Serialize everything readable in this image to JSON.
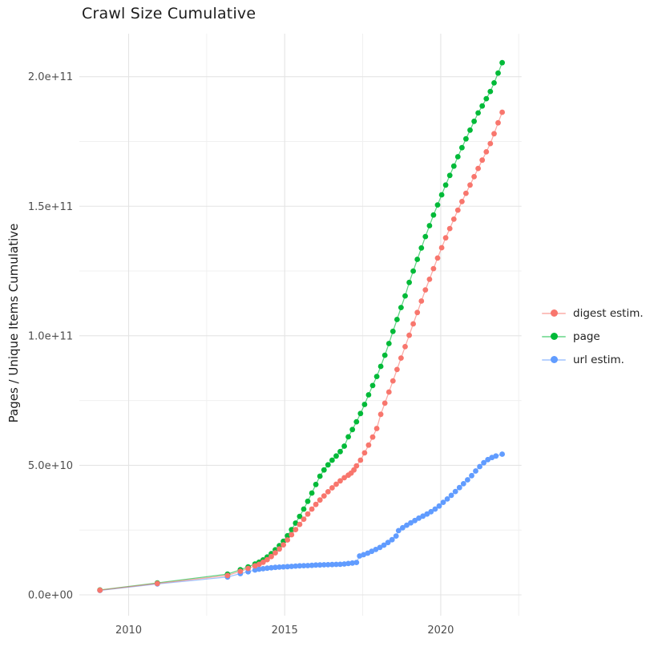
{
  "chart_data": {
    "type": "scatter",
    "title": "Crawl Size Cumulative",
    "ylabel": "Pages / Unique Items Cumulative",
    "xlabel": "",
    "background_color": "#FFFFFF",
    "grid_major_color": "#E4E4E4",
    "grid_minor_color": "#F0F0F0",
    "tick_label_color": "#4d4d4d",
    "legend_position": "right",
    "x_ticks": [
      {
        "v": 2010,
        "label": "2010"
      },
      {
        "v": 2015,
        "label": "2015"
      },
      {
        "v": 2020,
        "label": "2020"
      }
    ],
    "x_minor": [
      2012.5,
      2017.5,
      2022.5
    ],
    "y_ticks": [
      {
        "v": 0,
        "label": "0.0e+00"
      },
      {
        "v": 50,
        "label": "5.0e+10"
      },
      {
        "v": 100,
        "label": "1.0e+11"
      },
      {
        "v": 150,
        "label": "1.5e+11"
      },
      {
        "v": 200,
        "label": "2.0e+11"
      }
    ],
    "y_minor": [
      25,
      75,
      125,
      175
    ],
    "y_value_multiplier": 1000000000,
    "x_range_years": [
      2008.4,
      2022.6
    ],
    "y_range_billions": [
      -32,
      238
    ],
    "series": [
      {
        "name": "digest estim.",
        "color": "#F8766D",
        "points": [
          [
            2009.08,
            1.8
          ],
          [
            2010.92,
            4.4
          ],
          [
            2013.17,
            7.5
          ],
          [
            2013.58,
            9.1
          ],
          [
            2013.83,
            10.2
          ],
          [
            2014.05,
            11.2
          ],
          [
            2014.18,
            11.8
          ],
          [
            2014.31,
            12.6
          ],
          [
            2014.44,
            13.6
          ],
          [
            2014.57,
            14.8
          ],
          [
            2014.7,
            16.2
          ],
          [
            2014.83,
            17.7
          ],
          [
            2014.96,
            19.3
          ],
          [
            2015.09,
            21.2
          ],
          [
            2015.22,
            23.2
          ],
          [
            2015.35,
            25.2
          ],
          [
            2015.48,
            27.2
          ],
          [
            2015.61,
            29.2
          ],
          [
            2015.74,
            31.2
          ],
          [
            2015.87,
            33.1
          ],
          [
            2016.0,
            34.9
          ],
          [
            2016.13,
            36.6
          ],
          [
            2016.26,
            38.2
          ],
          [
            2016.39,
            39.8
          ],
          [
            2016.52,
            41.3
          ],
          [
            2016.65,
            42.7
          ],
          [
            2016.78,
            44.0
          ],
          [
            2016.91,
            45.2
          ],
          [
            2017.04,
            46.2
          ],
          [
            2017.13,
            47.0
          ],
          [
            2017.22,
            48.2
          ],
          [
            2017.3,
            49.8
          ],
          [
            2017.43,
            52.0
          ],
          [
            2017.56,
            54.8
          ],
          [
            2017.69,
            57.8
          ],
          [
            2017.82,
            60.9
          ],
          [
            2017.95,
            64.2
          ],
          [
            2018.08,
            69.7
          ],
          [
            2018.21,
            74.0
          ],
          [
            2018.34,
            78.3
          ],
          [
            2018.47,
            82.6
          ],
          [
            2018.6,
            87.0
          ],
          [
            2018.73,
            91.4
          ],
          [
            2018.86,
            95.8
          ],
          [
            2018.99,
            100.2
          ],
          [
            2019.12,
            104.6
          ],
          [
            2019.25,
            109.0
          ],
          [
            2019.38,
            113.4
          ],
          [
            2019.51,
            117.7
          ],
          [
            2019.64,
            121.8
          ],
          [
            2019.77,
            125.9
          ],
          [
            2019.9,
            130.0
          ],
          [
            2020.03,
            134.0
          ],
          [
            2020.16,
            137.8
          ],
          [
            2020.29,
            141.4
          ],
          [
            2020.42,
            145.0
          ],
          [
            2020.55,
            148.5
          ],
          [
            2020.68,
            151.8
          ],
          [
            2020.81,
            155.0
          ],
          [
            2020.94,
            158.2
          ],
          [
            2021.07,
            161.4
          ],
          [
            2021.2,
            164.6
          ],
          [
            2021.33,
            167.8
          ],
          [
            2021.46,
            171.0
          ],
          [
            2021.59,
            174.2
          ],
          [
            2021.71,
            178.0
          ],
          [
            2021.84,
            182.2
          ],
          [
            2021.97,
            186.3
          ]
        ]
      },
      {
        "name": "page",
        "color": "#00BA38",
        "points": [
          [
            2009.08,
            1.9
          ],
          [
            2010.92,
            4.6
          ],
          [
            2013.17,
            8.0
          ],
          [
            2013.58,
            9.7
          ],
          [
            2013.83,
            10.8
          ],
          [
            2014.05,
            11.9
          ],
          [
            2014.18,
            12.6
          ],
          [
            2014.31,
            13.5
          ],
          [
            2014.44,
            14.6
          ],
          [
            2014.57,
            15.9
          ],
          [
            2014.7,
            17.4
          ],
          [
            2014.83,
            19.0
          ],
          [
            2014.96,
            20.7
          ],
          [
            2015.09,
            22.8
          ],
          [
            2015.22,
            25.2
          ],
          [
            2015.35,
            27.7
          ],
          [
            2015.48,
            30.3
          ],
          [
            2015.61,
            33.1
          ],
          [
            2015.74,
            36.1
          ],
          [
            2015.87,
            39.3
          ],
          [
            2016.0,
            42.6
          ],
          [
            2016.13,
            45.8
          ],
          [
            2016.26,
            48.2
          ],
          [
            2016.39,
            50.2
          ],
          [
            2016.52,
            52.0
          ],
          [
            2016.65,
            53.6
          ],
          [
            2016.78,
            55.3
          ],
          [
            2016.91,
            57.4
          ],
          [
            2017.04,
            61.0
          ],
          [
            2017.17,
            63.8
          ],
          [
            2017.3,
            66.8
          ],
          [
            2017.43,
            70.0
          ],
          [
            2017.56,
            73.5
          ],
          [
            2017.69,
            77.2
          ],
          [
            2017.82,
            80.8
          ],
          [
            2017.95,
            84.3
          ],
          [
            2018.08,
            88.2
          ],
          [
            2018.21,
            92.5
          ],
          [
            2018.34,
            97.0
          ],
          [
            2018.47,
            101.7
          ],
          [
            2018.6,
            106.3
          ],
          [
            2018.73,
            110.9
          ],
          [
            2018.86,
            115.4
          ],
          [
            2018.99,
            120.6
          ],
          [
            2019.12,
            125.0
          ],
          [
            2019.25,
            129.5
          ],
          [
            2019.38,
            133.9
          ],
          [
            2019.51,
            138.3
          ],
          [
            2019.64,
            142.5
          ],
          [
            2019.77,
            146.6
          ],
          [
            2019.9,
            150.5
          ],
          [
            2020.03,
            154.4
          ],
          [
            2020.16,
            158.2
          ],
          [
            2020.29,
            161.9
          ],
          [
            2020.42,
            165.5
          ],
          [
            2020.55,
            169.1
          ],
          [
            2020.68,
            172.6
          ],
          [
            2020.81,
            176.0
          ],
          [
            2020.94,
            179.4
          ],
          [
            2021.07,
            182.8
          ],
          [
            2021.2,
            186.0
          ],
          [
            2021.33,
            188.7
          ],
          [
            2021.46,
            191.5
          ],
          [
            2021.59,
            194.3
          ],
          [
            2021.71,
            197.6
          ],
          [
            2021.84,
            201.4
          ],
          [
            2021.97,
            205.4
          ]
        ]
      },
      {
        "name": "url estim.",
        "color": "#619CFF",
        "points": [
          [
            2009.08,
            1.7
          ],
          [
            2010.92,
            4.2
          ],
          [
            2013.17,
            6.9
          ],
          [
            2013.58,
            8.2
          ],
          [
            2013.83,
            8.9
          ],
          [
            2014.05,
            9.6
          ],
          [
            2014.18,
            9.9
          ],
          [
            2014.31,
            10.1
          ],
          [
            2014.44,
            10.3
          ],
          [
            2014.57,
            10.45
          ],
          [
            2014.7,
            10.6
          ],
          [
            2014.83,
            10.7
          ],
          [
            2014.96,
            10.8
          ],
          [
            2015.09,
            10.9
          ],
          [
            2015.22,
            11.0
          ],
          [
            2015.35,
            11.1
          ],
          [
            2015.48,
            11.2
          ],
          [
            2015.61,
            11.25
          ],
          [
            2015.74,
            11.3
          ],
          [
            2015.87,
            11.4
          ],
          [
            2016.0,
            11.5
          ],
          [
            2016.13,
            11.55
          ],
          [
            2016.26,
            11.6
          ],
          [
            2016.39,
            11.65
          ],
          [
            2016.52,
            11.7
          ],
          [
            2016.65,
            11.75
          ],
          [
            2016.78,
            11.8
          ],
          [
            2016.91,
            11.9
          ],
          [
            2017.04,
            12.1
          ],
          [
            2017.17,
            12.3
          ],
          [
            2017.3,
            12.5
          ],
          [
            2017.4,
            15.0
          ],
          [
            2017.53,
            15.5
          ],
          [
            2017.66,
            16.1
          ],
          [
            2017.79,
            16.8
          ],
          [
            2017.92,
            17.5
          ],
          [
            2018.05,
            18.3
          ],
          [
            2018.18,
            19.2
          ],
          [
            2018.31,
            20.2
          ],
          [
            2018.44,
            21.3
          ],
          [
            2018.57,
            22.7
          ],
          [
            2018.65,
            24.8
          ],
          [
            2018.78,
            25.9
          ],
          [
            2018.91,
            26.9
          ],
          [
            2019.04,
            27.8
          ],
          [
            2019.17,
            28.7
          ],
          [
            2019.3,
            29.6
          ],
          [
            2019.43,
            30.4
          ],
          [
            2019.56,
            31.2
          ],
          [
            2019.69,
            32.1
          ],
          [
            2019.82,
            33.1
          ],
          [
            2019.95,
            34.3
          ],
          [
            2020.08,
            35.7
          ],
          [
            2020.21,
            37.0
          ],
          [
            2020.34,
            38.4
          ],
          [
            2020.47,
            39.9
          ],
          [
            2020.6,
            41.4
          ],
          [
            2020.73,
            42.9
          ],
          [
            2020.86,
            44.4
          ],
          [
            2020.99,
            46.0
          ],
          [
            2021.12,
            47.8
          ],
          [
            2021.25,
            49.5
          ],
          [
            2021.38,
            51.0
          ],
          [
            2021.51,
            52.2
          ],
          [
            2021.64,
            53.0
          ],
          [
            2021.77,
            53.6
          ],
          [
            2021.97,
            54.3
          ]
        ]
      }
    ]
  }
}
